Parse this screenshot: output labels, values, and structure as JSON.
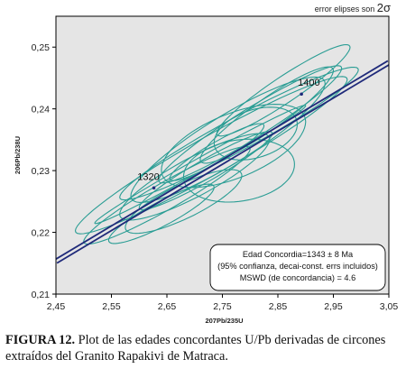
{
  "chart_data": {
    "type": "scatter",
    "subtype": "concordia-plot",
    "xlabel": "207Pb/235U",
    "ylabel": "206Pb/238U",
    "xlim": [
      2.45,
      3.05
    ],
    "ylim": [
      0.21,
      0.255
    ],
    "x_ticks": [
      "2,45",
      "2,55",
      "2,65",
      "2,75",
      "2,85",
      "2,95",
      "3,05"
    ],
    "y_ticks": [
      "0,21",
      "0,22",
      "0,23",
      "0,24",
      "0,25"
    ],
    "note": "error elipses son 2σ",
    "concordia_ages": [
      {
        "label": "1320",
        "x": 2.6265,
        "y": 0.2272
      },
      {
        "label": "1400",
        "x": 2.8925,
        "y": 0.2424
      }
    ],
    "concordia_line": [
      [
        2.45,
        0.2153
      ],
      [
        3.05,
        0.2475
      ]
    ],
    "ellipse_color": "#2a9d94",
    "concordia_color": "#1f2a7a",
    "background_color": "#e5e5e5",
    "ellipses": [
      {
        "x": 2.73,
        "y": 0.2325,
        "a": 0.245,
        "b": 0.0035,
        "angle": 0.05
      },
      {
        "x": 2.78,
        "y": 0.236,
        "a": 0.215,
        "b": 0.003,
        "angle": 0.048
      },
      {
        "x": 2.65,
        "y": 0.226,
        "a": 0.15,
        "b": 0.0025,
        "angle": 0.05
      },
      {
        "x": 2.76,
        "y": 0.235,
        "a": 0.175,
        "b": 0.0045,
        "angle": 0.052
      },
      {
        "x": 2.72,
        "y": 0.23,
        "a": 0.12,
        "b": 0.002,
        "angle": 0.05
      },
      {
        "x": 2.8,
        "y": 0.2375,
        "a": 0.165,
        "b": 0.0028,
        "angle": 0.055
      },
      {
        "x": 2.7,
        "y": 0.229,
        "a": 0.135,
        "b": 0.0035,
        "angle": 0.045
      },
      {
        "x": 2.78,
        "y": 0.23,
        "a": 0.1,
        "b": 0.005,
        "angle": 0.01
      },
      {
        "x": 2.83,
        "y": 0.239,
        "a": 0.12,
        "b": 0.003,
        "angle": 0.06
      },
      {
        "x": 2.68,
        "y": 0.225,
        "a": 0.105,
        "b": 0.003,
        "angle": 0.04
      },
      {
        "x": 2.74,
        "y": 0.233,
        "a": 0.085,
        "b": 0.0018,
        "angle": 0.05
      },
      {
        "x": 2.86,
        "y": 0.243,
        "a": 0.12,
        "b": 0.0025,
        "angle": 0.058
      },
      {
        "x": 2.64,
        "y": 0.223,
        "a": 0.095,
        "b": 0.0022,
        "angle": 0.045
      },
      {
        "x": 2.71,
        "y": 0.231,
        "a": 0.19,
        "b": 0.0012,
        "angle": 0.05
      },
      {
        "x": 2.77,
        "y": 0.234,
        "a": 0.13,
        "b": 0.0055,
        "angle": 0.03
      },
      {
        "x": 2.81,
        "y": 0.236,
        "a": 0.075,
        "b": 0.004,
        "angle": 0.02
      }
    ],
    "info_box": [
      "Edad Concordia=1343 ± 8 Ma",
      "(95% confianza, decai-const. errs incluidos)",
      "MSWD (de concordancia) = 4.6"
    ]
  },
  "caption": {
    "label": "FIGURA 12.",
    "text": " Plot de las edades concordantes U/Pb derivadas de circones extraídos del Granito Rapakivi de Matraca."
  }
}
